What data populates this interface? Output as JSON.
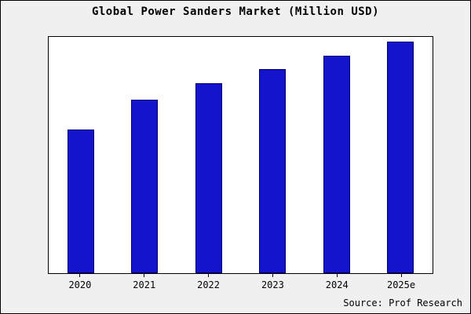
{
  "title": "Global Power Sanders Market (Million USD)",
  "source": "Source: Prof Research",
  "chart_data": {
    "type": "bar",
    "title": "Global Power Sanders Market (Million USD)",
    "categories": [
      "2020",
      "2021",
      "2022",
      "2023",
      "2024",
      "2025e"
    ],
    "values": [
      62,
      75,
      82,
      88,
      94,
      100
    ],
    "xlabel": "",
    "ylabel": "",
    "ylim": [
      0,
      102
    ],
    "y_axis_labels_visible": false,
    "grid": false,
    "legend_position": "none",
    "bar_color": "#1414cc",
    "bar_edge_color": "#000066",
    "figure_background": "#f0f0f0",
    "plot_background": "#ffffff",
    "source_annotation": "Source: Prof Research"
  }
}
